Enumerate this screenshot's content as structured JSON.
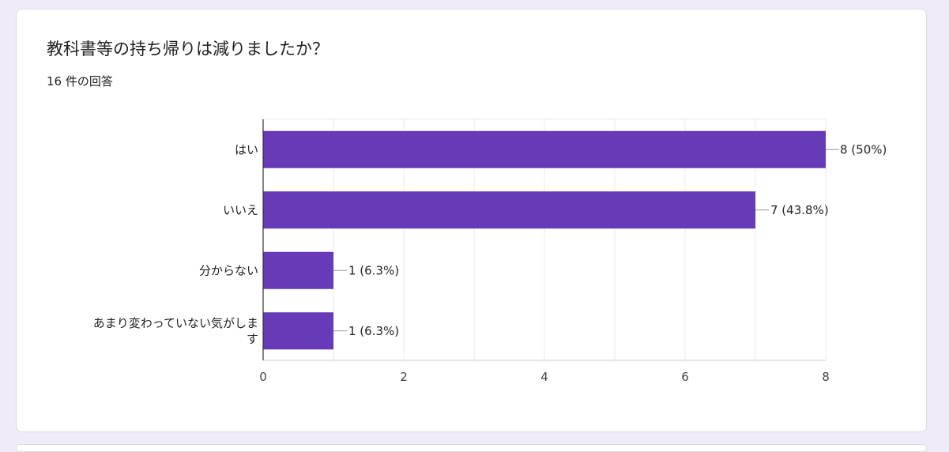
{
  "question": {
    "title": "教科書等の持ち帰りは減りましたか？",
    "response_count": "16 件の回答"
  },
  "chart_data": {
    "type": "bar",
    "orientation": "horizontal",
    "title": "",
    "categories": [
      "はい",
      "いいえ",
      "分からない",
      "あまり変わっていない気がします"
    ],
    "values": [
      8,
      7,
      1,
      1
    ],
    "data_labels": [
      "8 (50%)",
      "7 (43.8%)",
      "1 (6.3%)",
      "1 (6.3%)"
    ],
    "xlim": [
      0,
      8
    ],
    "xticks": [
      0,
      2,
      4,
      6,
      8
    ],
    "grid": true,
    "bar_color": "#673ab7"
  }
}
